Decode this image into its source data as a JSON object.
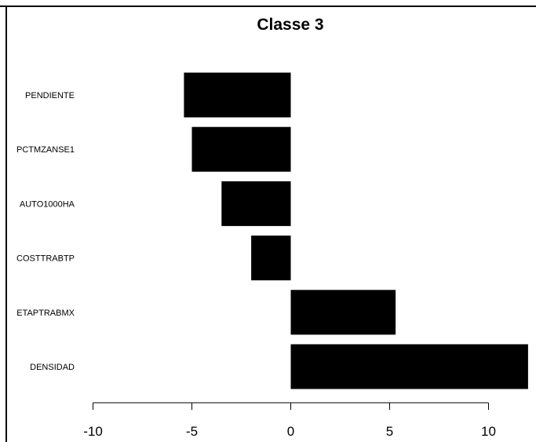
{
  "chart_data": {
    "type": "bar",
    "orientation": "horizontal",
    "title": "Classe 3",
    "xlabel": "",
    "ylabel": "",
    "categories": [
      "PENDIENTE",
      "PCTMZANSE1",
      "AUTO1000HA",
      "COSTTRABTP",
      "ETAPTRABMX",
      "DENSIDAD"
    ],
    "values": [
      -5.4,
      -5.0,
      -3.5,
      -2.0,
      5.3,
      12.0
    ],
    "x_ticks": [
      -10,
      -5,
      0,
      5,
      10
    ],
    "x_tick_labels": [
      "-10",
      "-5",
      "0",
      "5",
      "10"
    ],
    "xlim": [
      -10,
      12
    ],
    "grid": false,
    "bar_color": "#000000"
  }
}
